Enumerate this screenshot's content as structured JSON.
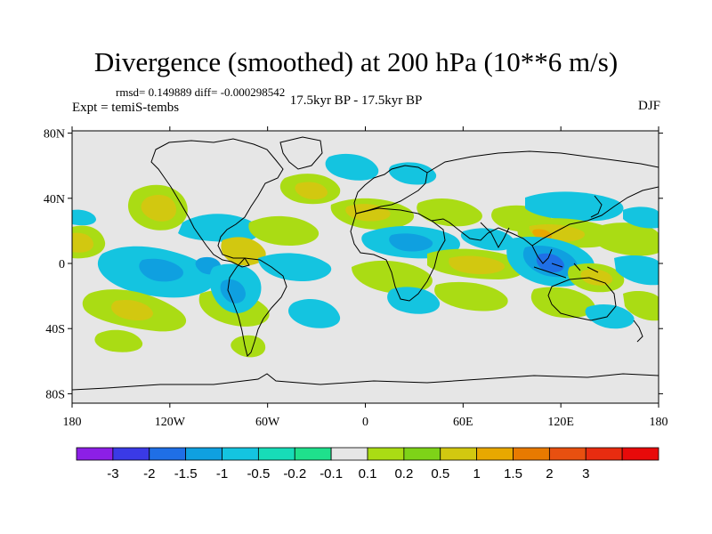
{
  "title": "Divergence (smoothed) at 200 hPa (10**6 m/s)",
  "stats": "rmsd= 0.149889 diff= -0.000298542",
  "experiment": "Expt = temiS-tembs",
  "period": "17.5kyr BP - 17.5kyr BP",
  "season": "DJF",
  "lat_ticks": [
    {
      "value": 80,
      "label": "80N"
    },
    {
      "value": 40,
      "label": "40N"
    },
    {
      "value": 0,
      "label": "0"
    },
    {
      "value": -40,
      "label": "40S"
    },
    {
      "value": -80,
      "label": "80S"
    }
  ],
  "lon_ticks": [
    {
      "value": -180,
      "label": "180"
    },
    {
      "value": -120,
      "label": "120W"
    },
    {
      "value": -60,
      "label": "60W"
    },
    {
      "value": 0,
      "label": "0"
    },
    {
      "value": 60,
      "label": "60E"
    },
    {
      "value": 120,
      "label": "120E"
    },
    {
      "value": 180,
      "label": "180"
    }
  ],
  "colorbar": {
    "colors": [
      "#8c1fe6",
      "#3a3ae6",
      "#1f6fe6",
      "#0fa0e0",
      "#14c4e0",
      "#17dcb8",
      "#1fe08c",
      "#e6e6e6",
      "#aadc14",
      "#7ed318",
      "#d2c810",
      "#e8a800",
      "#e87a00",
      "#e85010",
      "#e82c10",
      "#e80a0a"
    ],
    "labels": [
      "-3",
      "-2",
      "-1.5",
      "-1",
      "-0.5",
      "-0.2",
      "-0.1",
      "0.1",
      "0.2",
      "0.5",
      "1",
      "1.5",
      "2",
      "3"
    ]
  },
  "palette": {
    "neutral": "#e6e6e6",
    "pos_low": "#aadc14",
    "pos_mid": "#d2c810",
    "pos_high": "#e8a800",
    "neg_low": "#1fe08c",
    "neg_mid": "#14c4e0",
    "neg_high": "#0fa0e0"
  }
}
